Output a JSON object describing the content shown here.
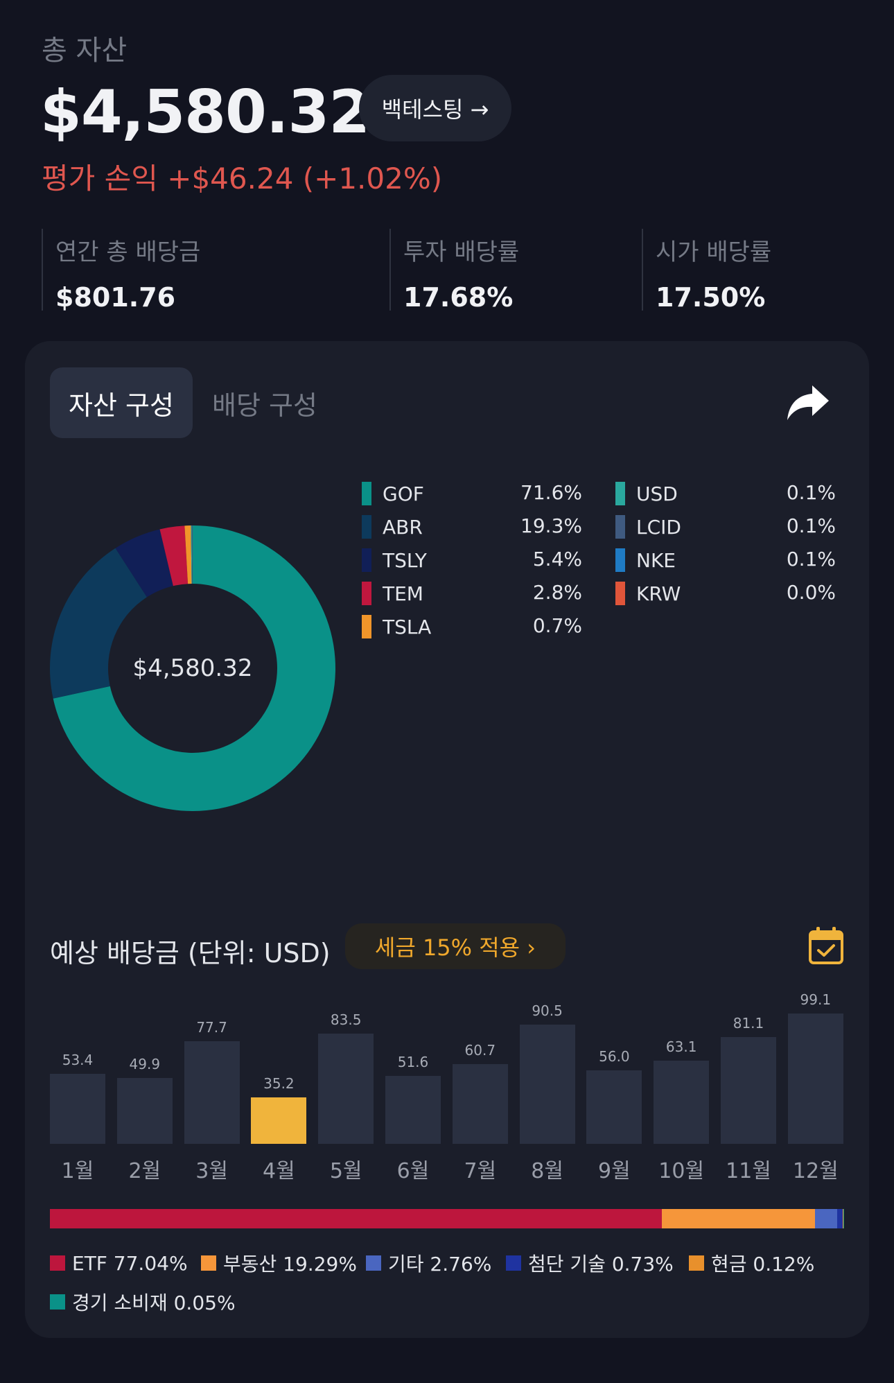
{
  "header": {
    "total_label": "총 자산",
    "total_value": "$4,580.32",
    "backtest_label": "백테스팅 →",
    "pnl_text": "평가 손익 +$46.24 (+1.02%)"
  },
  "stats": [
    {
      "label": "연간 총 배당금",
      "value": "$801.76"
    },
    {
      "label": "투자 배당률",
      "value": "17.68%"
    },
    {
      "label": "시가 배당률",
      "value": "17.50%"
    }
  ],
  "tabs": {
    "active": "자산 구성",
    "inactive": "배당 구성"
  },
  "allocation": {
    "center_label": "$4,580.32",
    "legend_left": [
      {
        "name": "GOF",
        "pct": "71.6%",
        "color": "#0a9188"
      },
      {
        "name": "ABR",
        "pct": "19.3%",
        "color": "#0d3a5c"
      },
      {
        "name": "TSLY",
        "pct": "5.4%",
        "color": "#111f57"
      },
      {
        "name": "TEM",
        "pct": "2.8%",
        "color": "#c0173e"
      },
      {
        "name": "TSLA",
        "pct": "0.7%",
        "color": "#f0952a"
      }
    ],
    "legend_right": [
      {
        "name": "USD",
        "pct": "0.1%",
        "color": "#2aa89e"
      },
      {
        "name": "LCID",
        "pct": "0.1%",
        "color": "#3f5a80"
      },
      {
        "name": "NKE",
        "pct": "0.1%",
        "color": "#1f7bc4"
      },
      {
        "name": "KRW",
        "pct": "0.0%",
        "color": "#e0553a"
      }
    ],
    "slices": [
      {
        "value": 71.6,
        "color": "#0a9188"
      },
      {
        "value": 19.3,
        "color": "#0d3a5c"
      },
      {
        "value": 5.4,
        "color": "#111f57"
      },
      {
        "value": 2.8,
        "color": "#c0173e"
      },
      {
        "value": 0.7,
        "color": "#f0952a"
      },
      {
        "value": 0.1,
        "color": "#2aa89e"
      },
      {
        "value": 0.1,
        "color": "#3f5a80"
      }
    ]
  },
  "dividends": {
    "title": "예상 배당금 (단위: USD)",
    "tax_label": "세금 15% 적용  ›",
    "highlight_color": "#f0b43c",
    "bar_color": "#2a3041"
  },
  "chart_data": {
    "type": "bar",
    "categories": [
      "1월",
      "2월",
      "3월",
      "4월",
      "5월",
      "6월",
      "7월",
      "8월",
      "9월",
      "10월",
      "11월",
      "12월"
    ],
    "values": [
      53.4,
      49.9,
      77.7,
      35.2,
      83.5,
      51.6,
      60.7,
      90.5,
      56.0,
      63.1,
      81.1,
      99.1
    ],
    "value_labels": [
      "53.4",
      "49.9",
      "77.7",
      "35.2",
      "83.5",
      "51.6",
      "60.7",
      "90.5",
      "56.0",
      "63.1",
      "81.1",
      "99.1"
    ],
    "highlight_index": 3,
    "ylim": [
      0,
      100
    ]
  },
  "sectors": [
    {
      "label": "ETF 77.04%",
      "value": 77.04,
      "color": "#bd163d"
    },
    {
      "label": "부동산 19.29%",
      "value": 19.29,
      "color": "#f6963a"
    },
    {
      "label": "기타 2.76%",
      "value": 2.76,
      "color": "#4a66c0"
    },
    {
      "label": "첨단 기술 0.73%",
      "value": 0.73,
      "color": "#1f33a0"
    },
    {
      "label": "현금 0.12%",
      "value": 0.12,
      "color": "#e8902c"
    },
    {
      "label": "경기 소비재 0.05%",
      "value": 0.05,
      "color": "#0a9188"
    }
  ]
}
